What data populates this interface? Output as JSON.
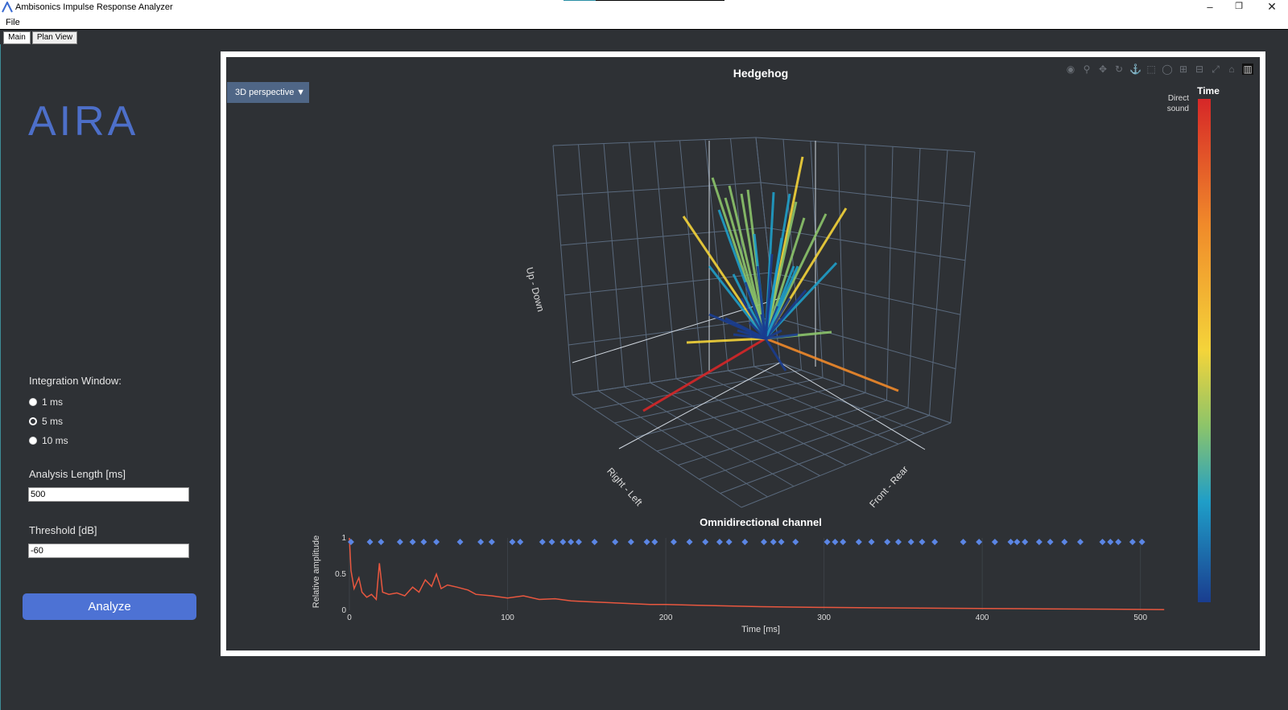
{
  "window": {
    "title": "Ambisonics Impulse Response Analyzer",
    "minimize": "–",
    "maximize": "❐",
    "close": "✕"
  },
  "menu": {
    "file": "File"
  },
  "tabs": [
    {
      "label": "Main"
    },
    {
      "label": "Plan View"
    }
  ],
  "sidebar": {
    "logo": "AIRA",
    "integration_label": "Integration Window:",
    "integration_options": [
      "1 ms",
      "5 ms",
      "10 ms"
    ],
    "integration_selected": "5 ms",
    "analysis_length_label": "Analysis Length [ms]",
    "analysis_length_value": "500",
    "threshold_label": "Threshold [dB]",
    "threshold_value": "-60",
    "analyze_label": "Analyze"
  },
  "plot": {
    "view_select": "3D perspective",
    "view_select_arrow": "▼",
    "modebar_icons": [
      "camera-icon",
      "zoom-icon",
      "pan-icon",
      "orbit-icon",
      "anchor-icon",
      "box-select-icon",
      "lasso-icon",
      "zoom-in-icon",
      "zoom-out-icon",
      "autoscale-icon",
      "home-icon",
      "spikes-icon"
    ],
    "modebar_glyphs": [
      "◉",
      "⚲",
      "✥",
      "↻",
      "⚓",
      "⬚",
      "◯",
      "⊞",
      "⊟",
      "⤢",
      "⌂",
      "▥"
    ]
  },
  "chart_data": [
    {
      "type": "scatter",
      "subtype": "3d-hedgehog",
      "title": "Hedgehog",
      "axes": {
        "x": "Right - Left",
        "y": "Front - Rear",
        "z": "Up - Down"
      },
      "colorbar": {
        "title": "Time",
        "top_label": "Direct sound",
        "colors": [
          "#d62728",
          "#f08a2a",
          "#f4d43a",
          "#8cc46a",
          "#1f9ec8",
          "#1a3d8f"
        ]
      },
      "grid": true
    },
    {
      "type": "line",
      "title": "Omnidirectional channel",
      "xlabel": "Time [ms]",
      "ylabel": "Relative amplitude",
      "xlim": [
        0,
        520
      ],
      "ylim": [
        0,
        1
      ],
      "xticks": [
        0,
        100,
        200,
        300,
        400,
        500
      ],
      "yticks": [
        0,
        0.5,
        1
      ],
      "line_color": "#e9573f",
      "marker_color": "#5b86e5",
      "peak_markers_x": [
        1,
        13,
        20,
        32,
        40,
        47,
        55,
        70,
        83,
        90,
        103,
        108,
        122,
        128,
        135,
        140,
        145,
        155,
        168,
        178,
        188,
        193,
        205,
        215,
        225,
        234,
        240,
        250,
        262,
        268,
        273,
        282,
        302,
        307,
        312,
        322,
        330,
        340,
        347,
        355,
        362,
        370,
        388,
        398,
        408,
        418,
        422,
        427,
        436,
        443,
        452,
        462,
        476,
        481,
        486,
        495,
        501
      ],
      "envelope": [
        [
          0,
          1.0
        ],
        [
          1,
          0.55
        ],
        [
          3,
          0.3
        ],
        [
          6,
          0.45
        ],
        [
          8,
          0.25
        ],
        [
          11,
          0.18
        ],
        [
          14,
          0.22
        ],
        [
          17,
          0.15
        ],
        [
          19,
          0.65
        ],
        [
          21,
          0.25
        ],
        [
          25,
          0.22
        ],
        [
          30,
          0.24
        ],
        [
          35,
          0.2
        ],
        [
          40,
          0.32
        ],
        [
          44,
          0.25
        ],
        [
          48,
          0.42
        ],
        [
          52,
          0.33
        ],
        [
          55,
          0.5
        ],
        [
          58,
          0.3
        ],
        [
          62,
          0.35
        ],
        [
          68,
          0.32
        ],
        [
          75,
          0.28
        ],
        [
          80,
          0.22
        ],
        [
          90,
          0.2
        ],
        [
          100,
          0.17
        ],
        [
          110,
          0.2
        ],
        [
          120,
          0.15
        ],
        [
          130,
          0.16
        ],
        [
          140,
          0.13
        ],
        [
          150,
          0.12
        ],
        [
          160,
          0.11
        ],
        [
          170,
          0.1
        ],
        [
          180,
          0.09
        ],
        [
          190,
          0.08
        ],
        [
          200,
          0.08
        ],
        [
          220,
          0.07
        ],
        [
          240,
          0.06
        ],
        [
          260,
          0.05
        ],
        [
          280,
          0.045
        ],
        [
          300,
          0.04
        ],
        [
          330,
          0.035
        ],
        [
          360,
          0.03
        ],
        [
          400,
          0.025
        ],
        [
          440,
          0.02
        ],
        [
          480,
          0.015
        ],
        [
          515,
          0.01
        ]
      ]
    }
  ]
}
